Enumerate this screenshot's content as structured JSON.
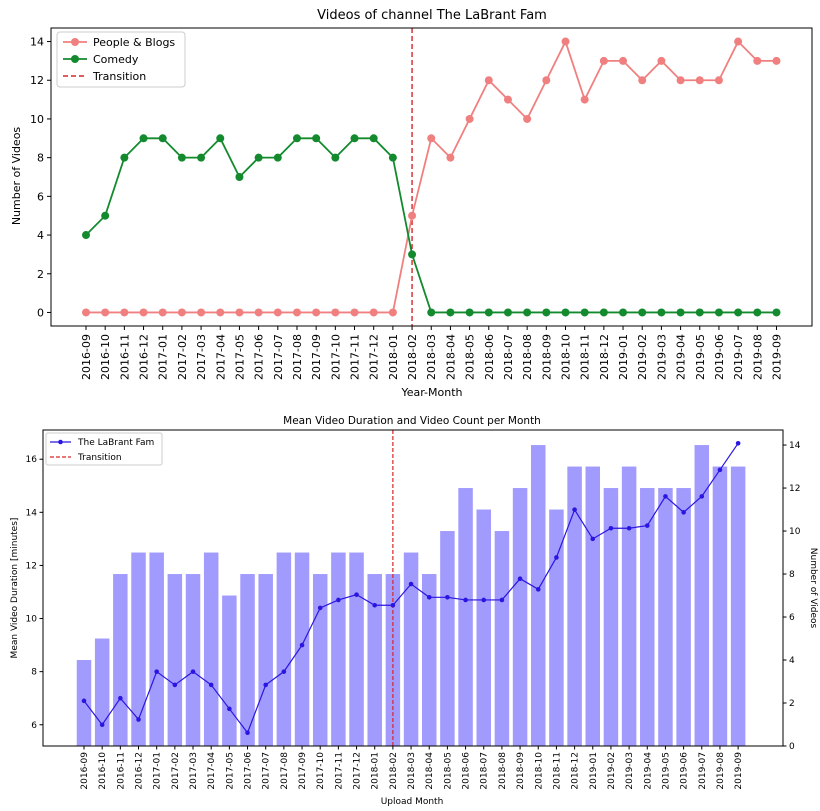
{
  "chart_data": [
    {
      "type": "line",
      "title": "Videos of channel The LaBrant Fam",
      "xlabel": "Year-Month",
      "ylabel": "Number of Videos",
      "ylim": [
        -0.7,
        14.7
      ],
      "yticks": [
        0,
        2,
        4,
        6,
        8,
        10,
        12,
        14
      ],
      "categories": [
        "2016-09",
        "2016-10",
        "2016-11",
        "2016-12",
        "2017-01",
        "2017-02",
        "2017-03",
        "2017-04",
        "2017-05",
        "2017-06",
        "2017-07",
        "2017-08",
        "2017-09",
        "2017-10",
        "2017-11",
        "2017-12",
        "2018-01",
        "2018-02",
        "2018-03",
        "2018-04",
        "2018-05",
        "2018-06",
        "2018-07",
        "2018-08",
        "2018-09",
        "2018-10",
        "2018-11",
        "2018-12",
        "2019-01",
        "2019-02",
        "2019-03",
        "2019-04",
        "2019-05",
        "2019-06",
        "2019-07",
        "2019-08",
        "2019-09"
      ],
      "series": [
        {
          "name": "People & Blogs",
          "color": "#f08080",
          "values": [
            0,
            0,
            0,
            0,
            0,
            0,
            0,
            0,
            0,
            0,
            0,
            0,
            0,
            0,
            0,
            0,
            0,
            5,
            9,
            8,
            10,
            12,
            11,
            10,
            12,
            14,
            11,
            13,
            13,
            12,
            13,
            12,
            12,
            12,
            14,
            13,
            13
          ]
        },
        {
          "name": "Comedy",
          "color": "#138a2e",
          "values": [
            4,
            5,
            8,
            9,
            9,
            8,
            8,
            9,
            7,
            8,
            8,
            9,
            9,
            8,
            9,
            9,
            8,
            3,
            0,
            0,
            0,
            0,
            0,
            0,
            0,
            0,
            0,
            0,
            0,
            0,
            0,
            0,
            0,
            0,
            0,
            0,
            0
          ]
        }
      ],
      "transition": {
        "name": "Transition",
        "x": "2018-02",
        "color": "#d62728"
      },
      "legend": "top-left",
      "grid": false
    },
    {
      "type": "bar+line",
      "title": "Mean Video Duration and Video Count per Month",
      "xlabel": "Upload Month",
      "ylabel": "Mean Video Duration [minutes]",
      "y2label": "Number of Videos",
      "ylim": [
        5.2,
        17.1
      ],
      "yticks": [
        6,
        8,
        10,
        12,
        14,
        16
      ],
      "y2lim": [
        0,
        14.7
      ],
      "y2ticks": [
        0,
        2,
        4,
        6,
        8,
        10,
        12,
        14
      ],
      "categories": [
        "2016-09",
        "2016-10",
        "2016-11",
        "2016-12",
        "2017-01",
        "2017-02",
        "2017-03",
        "2017-04",
        "2017-05",
        "2017-06",
        "2017-07",
        "2017-08",
        "2017-09",
        "2017-10",
        "2017-11",
        "2017-12",
        "2018-01",
        "2018-02",
        "2018-03",
        "2018-04",
        "2018-05",
        "2018-06",
        "2018-07",
        "2018-08",
        "2018-09",
        "2018-10",
        "2018-11",
        "2018-12",
        "2019-01",
        "2019-02",
        "2019-03",
        "2019-04",
        "2019-05",
        "2019-06",
        "2019-07",
        "2019-08",
        "2019-09"
      ],
      "bars": {
        "name": "Number of Videos",
        "color": "#a29bfe",
        "values": [
          4,
          5,
          8,
          9,
          9,
          8,
          8,
          9,
          7,
          8,
          8,
          9,
          9,
          8,
          9,
          9,
          8,
          8,
          9,
          8,
          10,
          12,
          11,
          10,
          12,
          14,
          11,
          13,
          13,
          12,
          13,
          12,
          12,
          12,
          14,
          13,
          13
        ]
      },
      "line": {
        "name": "The LaBrant Fam",
        "color": "#2a16e0",
        "values": [
          6.9,
          6.0,
          7.0,
          6.2,
          8.0,
          7.5,
          8.0,
          7.5,
          6.6,
          5.7,
          7.5,
          8.0,
          9.0,
          10.4,
          10.7,
          10.9,
          10.5,
          10.5,
          11.3,
          10.8,
          10.8,
          10.7,
          10.7,
          10.7,
          11.5,
          11.1,
          12.3,
          14.1,
          13.0,
          13.4,
          13.4,
          13.5,
          14.6,
          14.0,
          14.6,
          15.6,
          16.6
        ]
      },
      "transition": {
        "name": "Transition",
        "x": "2018-02",
        "color": "#d62728"
      },
      "legend": "top-left",
      "grid": false
    }
  ]
}
